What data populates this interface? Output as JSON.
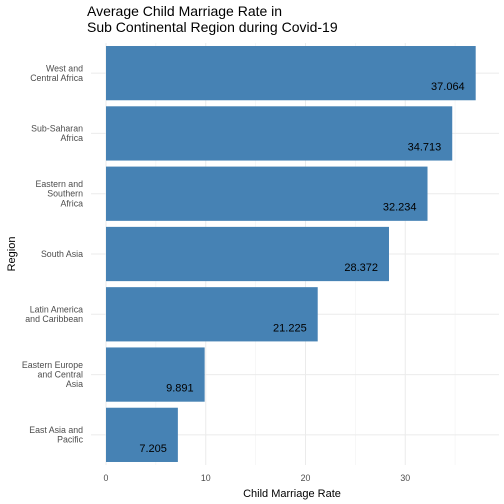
{
  "chart_data": {
    "type": "bar",
    "orientation": "horizontal",
    "title": "Average Child Marriage Rate in\nSub Continental Region during Covid-19",
    "xlabel": "Child Marriage Rate",
    "ylabel": "Region",
    "categories": [
      "West and\nCentral Africa",
      "Sub-Saharan\nAfrica",
      "Eastern and\nSouthern\nAfrica",
      "South Asia",
      "Latin America\nand Caribbean",
      "Eastern Europe\nand Central\nAsia",
      "East Asia and\nPacific"
    ],
    "values": [
      37.064,
      34.713,
      32.234,
      28.372,
      21.225,
      9.891,
      7.205
    ],
    "data_labels": [
      "37.064",
      "34.713",
      "32.234",
      "28.372",
      "21.225",
      "9.891",
      "7.205"
    ],
    "xlim": [
      0,
      39
    ],
    "xticks": [
      0,
      10,
      20,
      30
    ],
    "grid": true,
    "bar_color": "#4682b4"
  }
}
